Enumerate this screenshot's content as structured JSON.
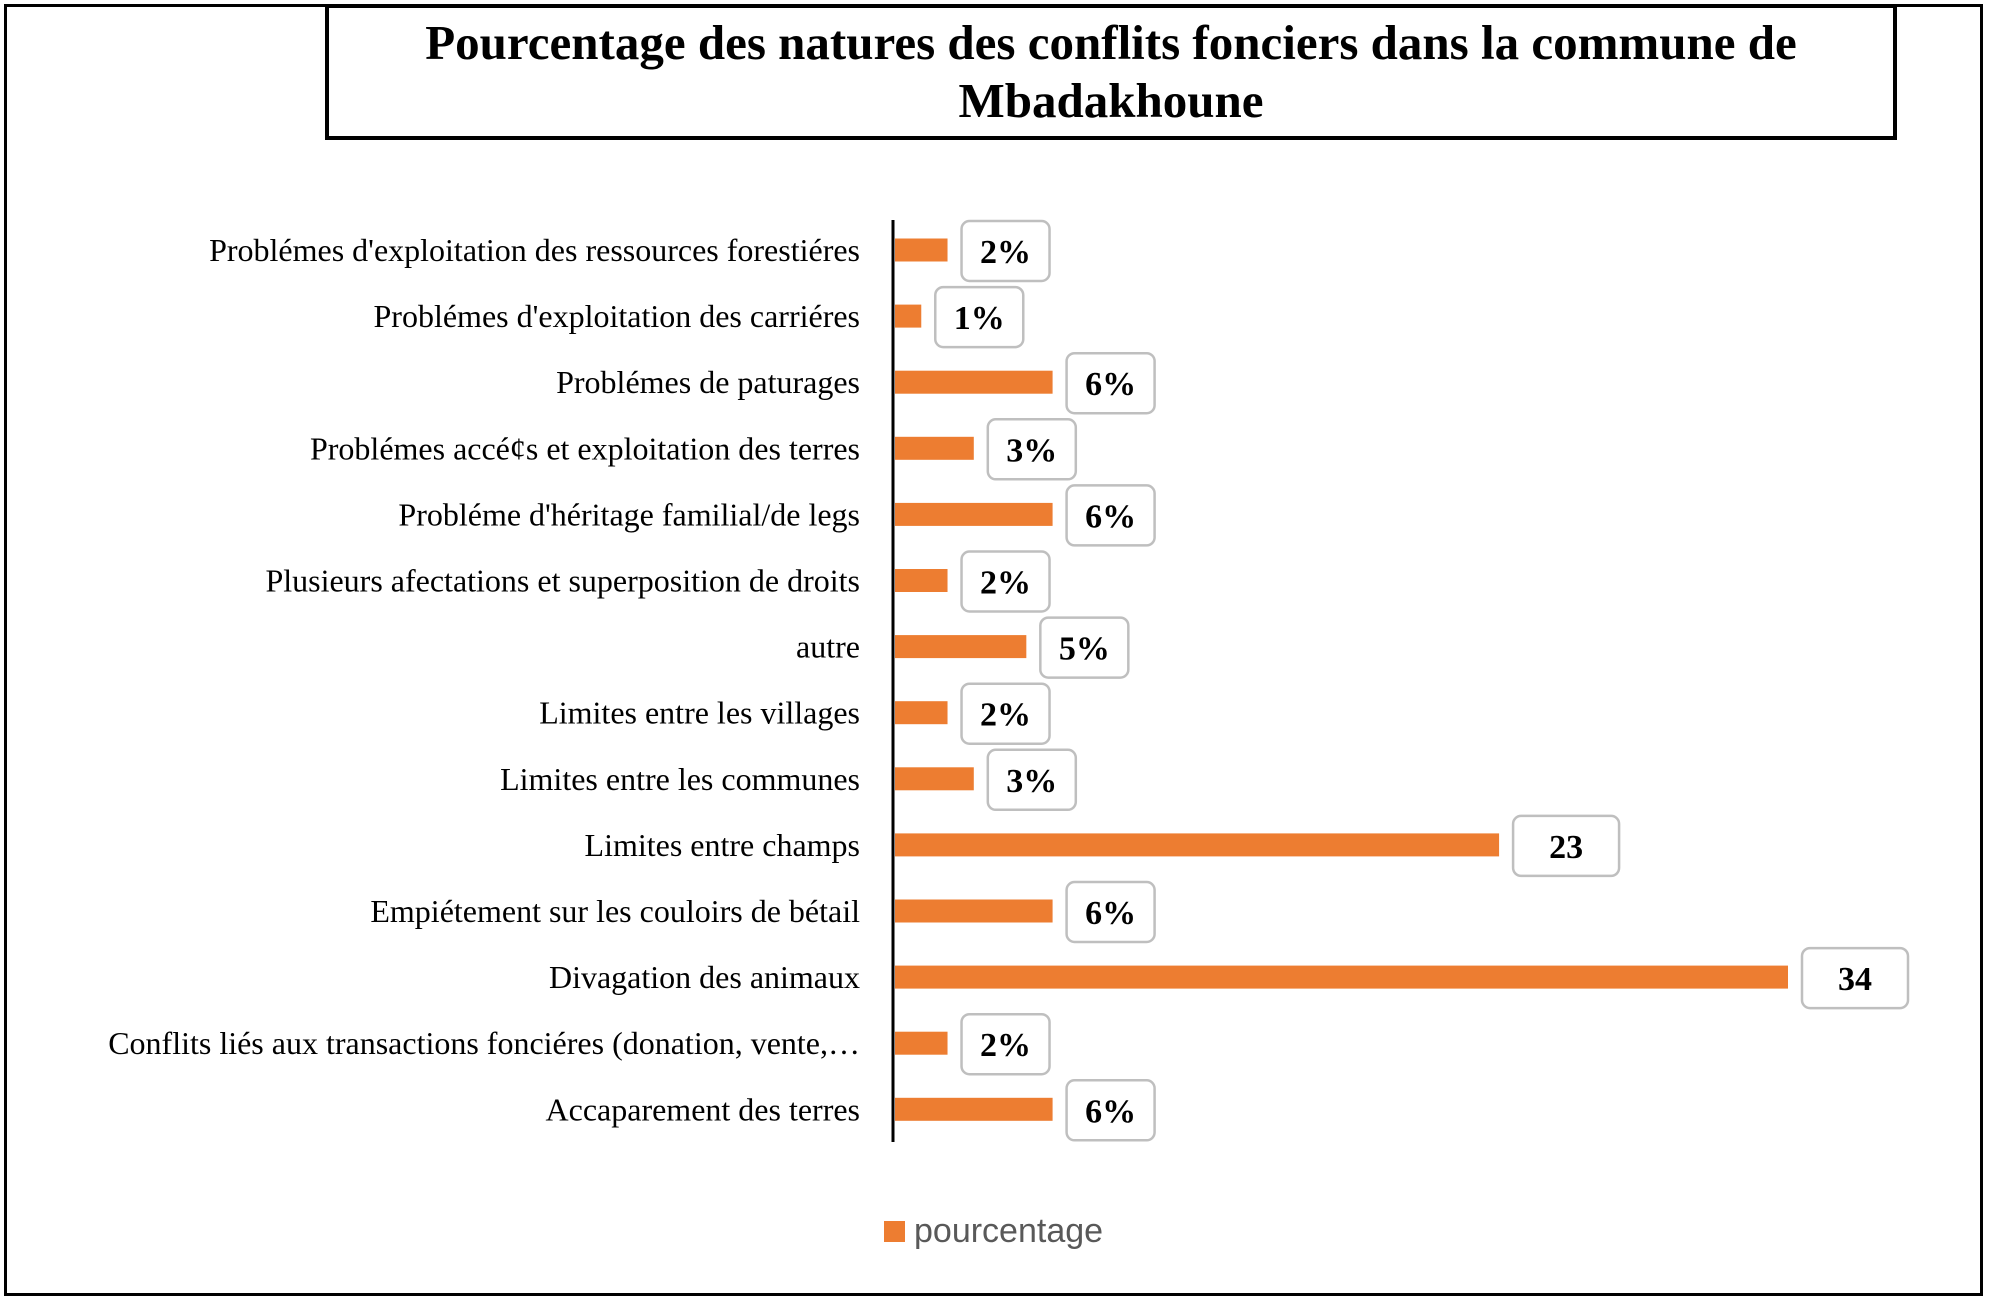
{
  "chart_data": {
    "type": "bar",
    "orientation": "horizontal",
    "title": "Pourcentage des natures des conflits fonciers dans la commune de Mbadakhoune",
    "categories": [
      "Problémes d'exploitation des ressources forestiéres",
      "Problémes d'exploitation des carriéres",
      "Problémes de paturages",
      "Problémes accé¢s et exploitation des terres",
      "Probléme d'héritage familial/de legs",
      "Plusieurs afectations et superposition de droits",
      "autre",
      "Limites entre les villages",
      "Limites entre les communes",
      "Limites entre champs",
      "Empiétement sur les couloirs de bétail",
      "Divagation des animaux",
      "Conflits liés aux transactions fonciéres (donation, vente,…",
      "Accaparement des terres"
    ],
    "series": [
      {
        "name": "pourcentage",
        "values": [
          2,
          1,
          6,
          3,
          6,
          2,
          5,
          2,
          3,
          23,
          6,
          34,
          2,
          6
        ],
        "data_labels": [
          "2%",
          "1%",
          "6%",
          "3%",
          "6%",
          "2%",
          "5%",
          "2%",
          "3%",
          "23",
          "6%",
          "34",
          "2%",
          "6%"
        ]
      }
    ],
    "xlim": [
      0,
      34
    ],
    "grid": false,
    "legend_position": "bottom",
    "bar_color": "#ED7D31"
  }
}
